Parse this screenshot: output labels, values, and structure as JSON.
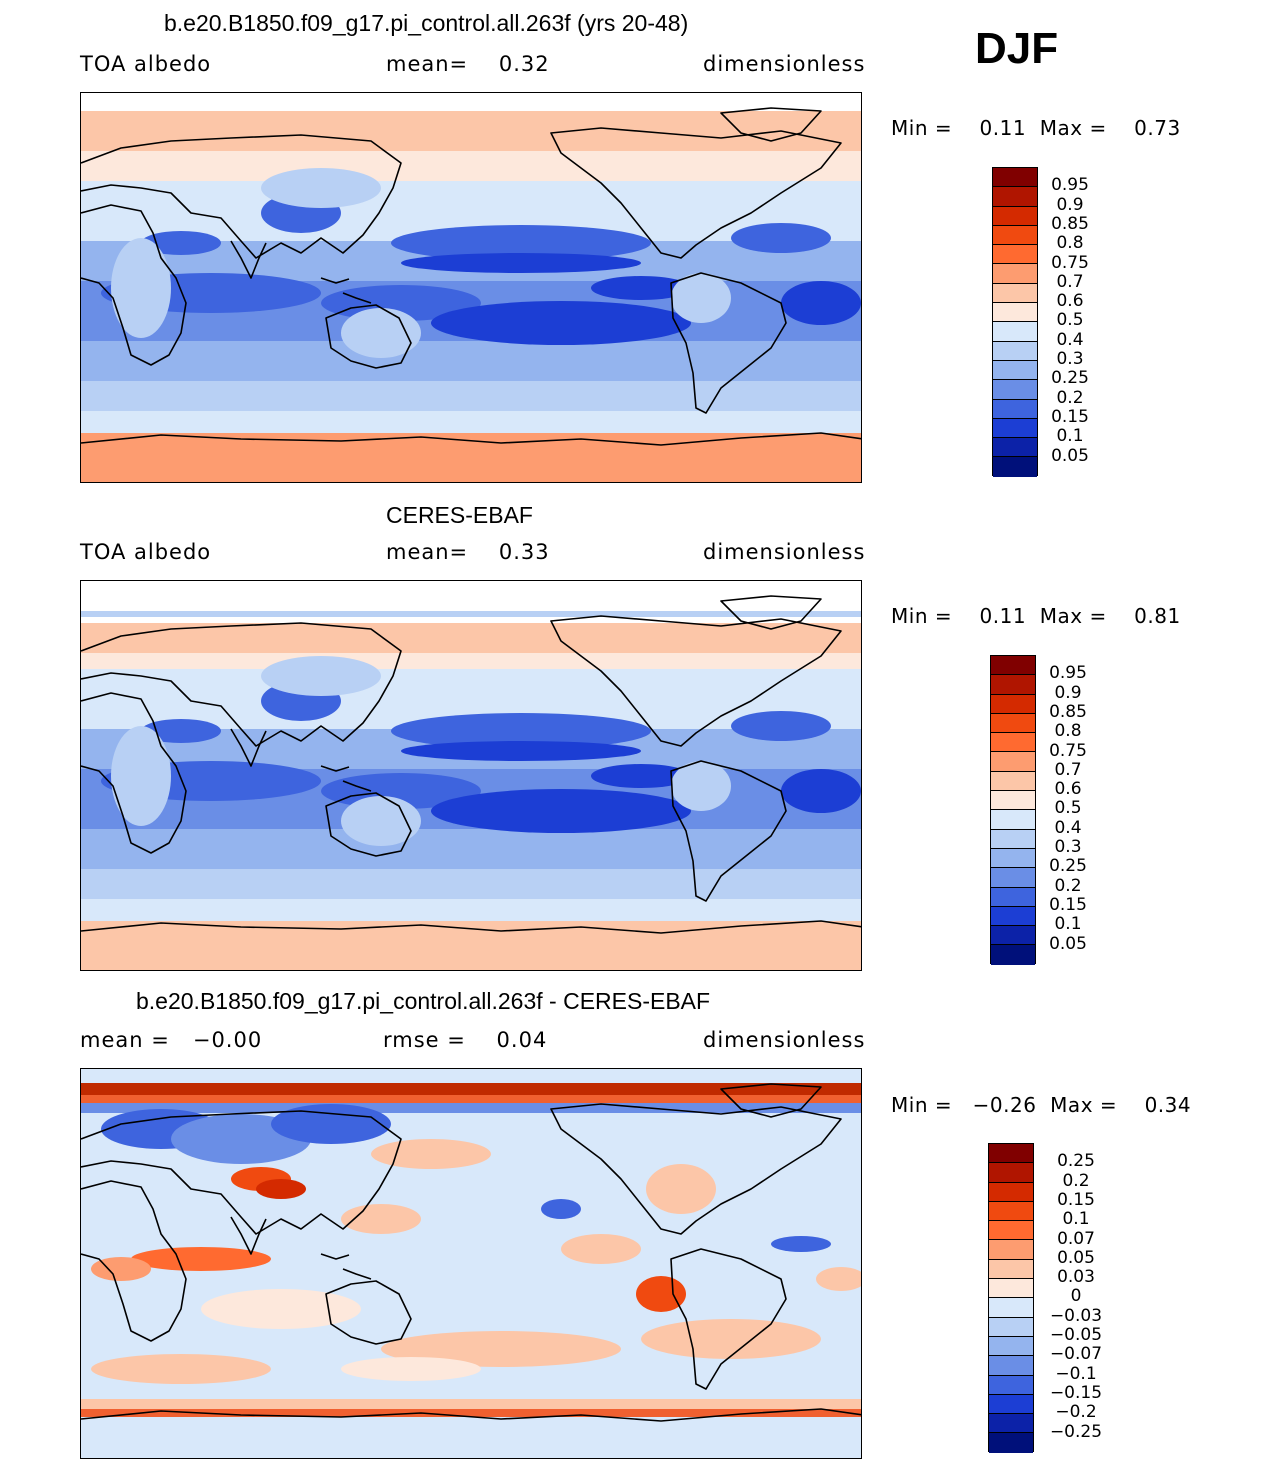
{
  "season": "DJF",
  "panels": [
    {
      "title": "b.e20.B1850.f09_g17.pi_control.all.263f (yrs 20-48)",
      "left_label": "TOA albedo",
      "mid_label": "mean=    0.32",
      "right_label": "dimensionless",
      "minmax": "Min =    0.11  Max =    0.73",
      "colorbar_labels": [
        "0.95",
        "0.9",
        "0.85",
        "0.8",
        "0.75",
        "0.7",
        "0.6",
        "0.5",
        "0.4",
        "0.3",
        "0.25",
        "0.2",
        "0.15",
        "0.1",
        "0.05"
      ]
    },
    {
      "title": "CERES-EBAF",
      "left_label": "TOA albedo",
      "mid_label": "mean=    0.33",
      "right_label": "dimensionless",
      "minmax": "Min =    0.11  Max =    0.81",
      "colorbar_labels": [
        "0.95",
        "0.9",
        "0.85",
        "0.8",
        "0.75",
        "0.7",
        "0.6",
        "0.5",
        "0.4",
        "0.3",
        "0.25",
        "0.2",
        "0.15",
        "0.1",
        "0.05"
      ]
    },
    {
      "title": "b.e20.B1850.f09_g17.pi_control.all.263f - CERES-EBAF",
      "left_label": "mean =   −0.00",
      "mid_label": "rmse =    0.04",
      "right_label": "dimensionless",
      "minmax": "Min =   −0.26  Max =    0.34",
      "colorbar_labels": [
        "0.25",
        "0.2",
        "0.15",
        "0.1",
        "0.07",
        "0.05",
        "0.03",
        "0",
        "−0.03",
        "−0.05",
        "−0.07",
        "−0.1",
        "−0.15",
        "−0.2",
        "−0.25"
      ]
    }
  ],
  "colors": {
    "scale": [
      "#800000",
      "#b01500",
      "#d42a00",
      "#f04a10",
      "#ff6a30",
      "#fd9c70",
      "#fcc6a8",
      "#fde8dc",
      "#d8e8fa",
      "#b8d0f4",
      "#94b4ee",
      "#6a8ee6",
      "#3e64de",
      "#1c3ed4",
      "#0c22a8",
      "#00107a"
    ]
  }
}
